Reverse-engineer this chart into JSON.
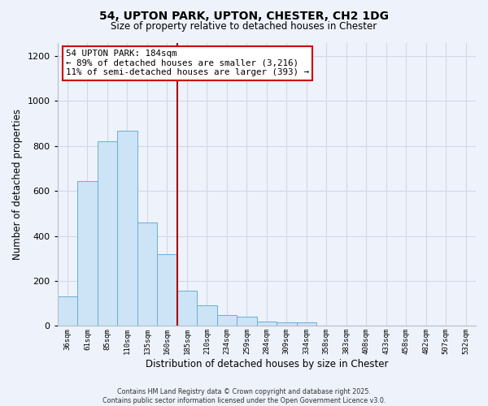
{
  "title": "54, UPTON PARK, UPTON, CHESTER, CH2 1DG",
  "subtitle": "Size of property relative to detached houses in Chester",
  "xlabel": "Distribution of detached houses by size in Chester",
  "ylabel": "Number of detached properties",
  "bin_labels": [
    "36sqm",
    "61sqm",
    "85sqm",
    "110sqm",
    "135sqm",
    "160sqm",
    "185sqm",
    "210sqm",
    "234sqm",
    "259sqm",
    "284sqm",
    "309sqm",
    "334sqm",
    "358sqm",
    "383sqm",
    "408sqm",
    "433sqm",
    "458sqm",
    "482sqm",
    "507sqm",
    "532sqm"
  ],
  "bar_heights": [
    133,
    645,
    820,
    868,
    460,
    320,
    158,
    91,
    50,
    40,
    20,
    16,
    16,
    0,
    0,
    0,
    0,
    0,
    0,
    0,
    0
  ],
  "bar_color": "#cce4f5",
  "bar_edge_color": "#6aaed6",
  "vline_color": "#aa0000",
  "annotation_title": "54 UPTON PARK: 184sqm",
  "annotation_line1": "← 89% of detached houses are smaller (3,216)",
  "annotation_line2": "11% of semi-detached houses are larger (393) →",
  "annotation_box_color": "white",
  "annotation_box_edge": "#cc0000",
  "ylim": [
    0,
    1260
  ],
  "yticks": [
    0,
    200,
    400,
    600,
    800,
    1000,
    1200
  ],
  "background_color": "#eef2fb",
  "grid_color": "#d0d8e8",
  "footer_line1": "Contains HM Land Registry data © Crown copyright and database right 2025.",
  "footer_line2": "Contains public sector information licensed under the Open Government Licence v3.0."
}
